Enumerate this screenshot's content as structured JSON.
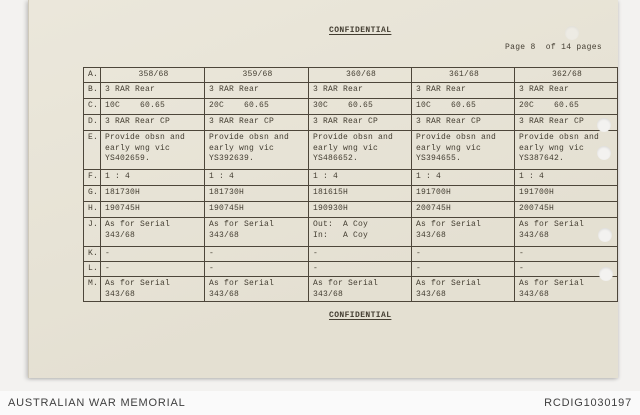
{
  "classification": {
    "top": "CONFIDENTIAL",
    "bottom": "CONFIDENTIAL"
  },
  "page_info": {
    "text": "Page 8  of 14 pages"
  },
  "table": {
    "rows": [
      {
        "label": "A.",
        "cells": [
          "358/68",
          "359/68",
          "360/68",
          "361/68",
          "362/68"
        ]
      },
      {
        "label": "B.",
        "cells": [
          "3 RAR Rear",
          "3 RAR Rear",
          "3 RAR Rear",
          "3 RAR Rear",
          "3 RAR Rear"
        ]
      },
      {
        "label": "C.",
        "cells": [
          "10C    60.65",
          "20C    60.65",
          "30C    60.65",
          "10C    60.65",
          "20C    60.65"
        ]
      },
      {
        "label": "D.",
        "cells": [
          "3 RAR Rear CP",
          "3 RAR Rear CP",
          "3 RAR Rear CP",
          "3 RAR Rear CP",
          "3 RAR Rear CP"
        ]
      },
      {
        "label": "E.",
        "cells": [
          "Provide obsn and\nearly wng vic\nYS402659.",
          "Provide obsn and\nearly wng vic\nYS392639.",
          "Provide obsn and\nearly wng vic\nYS486652.",
          "Provide obsn and\nearly wng vic\nYS394655.",
          "Provide obsn and\nearly wng vic\nYS387642."
        ]
      },
      {
        "label": "F.",
        "cells": [
          "1 : 4",
          "1 : 4",
          "1 : 4",
          "1 : 4",
          "1 : 4"
        ]
      },
      {
        "label": "G.",
        "cells": [
          "181730H",
          "181730H",
          "181615H",
          "191700H",
          "191700H"
        ]
      },
      {
        "label": "H.",
        "cells": [
          "190745H",
          "190745H",
          "190930H",
          "200745H",
          "200745H"
        ]
      },
      {
        "label": "J.",
        "cells": [
          "As for Serial 343/68",
          "As for Serial 343/68",
          "Out:  A Coy\nIn:   A Coy",
          "As for Serial 343/68",
          "As for Serial 343/68"
        ]
      },
      {
        "label": "K.",
        "cells": [
          "-",
          "-",
          "-",
          "-",
          "-"
        ]
      },
      {
        "label": "L.",
        "cells": [
          "-",
          "-",
          "-",
          "-",
          "-"
        ]
      },
      {
        "label": "M.",
        "cells": [
          "As for Serial 343/68",
          "As for Serial 343/68",
          "As for Serial 343/68",
          "As for Serial 343/68",
          "As for Serial 343/68"
        ]
      }
    ]
  },
  "footer": {
    "left": "AUSTRALIAN WAR MEMORIAL",
    "right": "RCDIG1030197"
  },
  "colors": {
    "paper": "#eae6d9",
    "ink": "#433d31",
    "background": "#f3f2f0",
    "footer_text": "#3f3f3f"
  }
}
